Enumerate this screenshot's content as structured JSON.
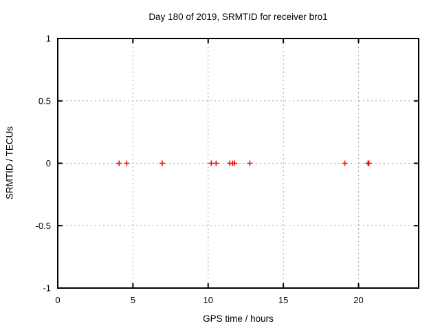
{
  "page": {
    "background": "#ffffff"
  },
  "chart_data": {
    "type": "scatter",
    "title": "Day 180 of 2019, SRMTID for receiver bro1",
    "xlabel": "GPS time / hours",
    "ylabel": "SRMTID / TECUs",
    "xlim": [
      0,
      24
    ],
    "ylim": [
      -1,
      1
    ],
    "xticks": [
      0,
      5,
      10,
      15,
      20
    ],
    "yticks": [
      -1,
      -0.5,
      0,
      0.5,
      1
    ],
    "xtick_labels": [
      "0",
      "5",
      "10",
      "15",
      "20"
    ],
    "ytick_labels": [
      "-1",
      "-0.5",
      "0",
      "0.5",
      "1"
    ],
    "grid": true,
    "legend": "none",
    "marker": "plus",
    "marker_color": "#ff0000",
    "grid_color": "#a0a0a0",
    "series": [
      {
        "name": "SRMTID",
        "points": [
          {
            "x": 4.08,
            "y": 0
          },
          {
            "x": 4.59,
            "y": 0
          },
          {
            "x": 6.95,
            "y": 0
          },
          {
            "x": 10.21,
            "y": 0
          },
          {
            "x": 10.53,
            "y": 0
          },
          {
            "x": 11.44,
            "y": 0
          },
          {
            "x": 11.63,
            "y": 0
          },
          {
            "x": 11.76,
            "y": 0
          },
          {
            "x": 12.77,
            "y": 0
          },
          {
            "x": 19.09,
            "y": 0
          },
          {
            "x": 20.63,
            "y": 0
          },
          {
            "x": 20.69,
            "y": 0
          }
        ]
      }
    ]
  }
}
